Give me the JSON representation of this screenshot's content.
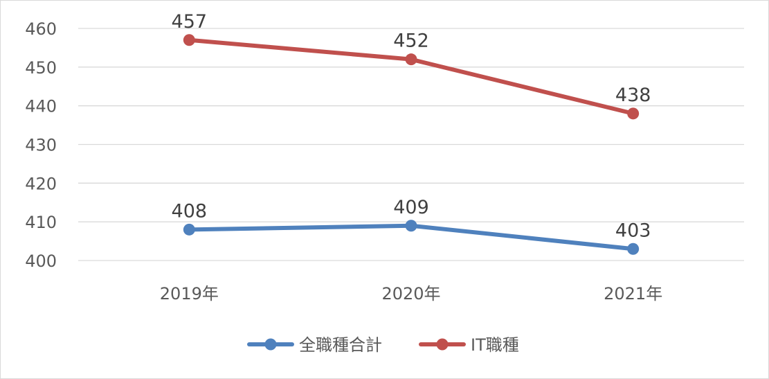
{
  "chart_data": {
    "type": "line",
    "categories": [
      "2019年",
      "2020年",
      "2021年"
    ],
    "series": [
      {
        "name": "全職種合計",
        "values": [
          408,
          409,
          403
        ],
        "color": "#4f81bd"
      },
      {
        "name": "IT職種",
        "values": [
          457,
          452,
          438
        ],
        "color": "#c0504d"
      }
    ],
    "ylim": [
      400,
      460
    ],
    "yticks": [
      400,
      410,
      420,
      430,
      440,
      450,
      460
    ],
    "grid": true,
    "legend": "bottom",
    "title": "",
    "xlabel": "",
    "ylabel": ""
  }
}
